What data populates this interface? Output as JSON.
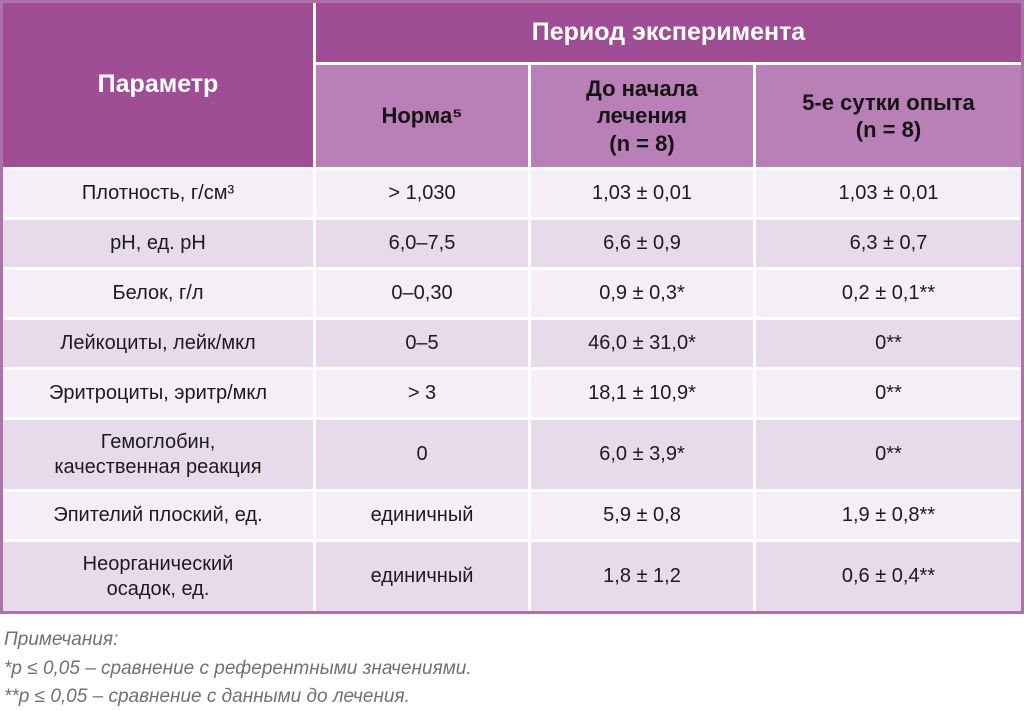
{
  "header": {
    "param_label": "Параметр",
    "period_label": "Период эксперимента",
    "col_norm": "Норма⁵",
    "col_before": "До начала лечения\n(n = 8)",
    "col_day5": "5-е сутки опыта\n(n = 8)"
  },
  "rows": [
    {
      "param": "Плотность, г/см³",
      "norm": "> 1,030",
      "before": "1,03 ± 0,01",
      "day5": "1,03 ± 0,01"
    },
    {
      "param": "pH, ед. pH",
      "norm": "6,0–7,5",
      "before": "6,6 ± 0,9",
      "day5": "6,3 ± 0,7"
    },
    {
      "param": "Белок, г/л",
      "norm": "0–0,30",
      "before": "0,9 ± 0,3*",
      "day5": "0,2 ± 0,1**"
    },
    {
      "param": "Лейкоциты, лейк/мкл",
      "norm": "0–5",
      "before": "46,0 ± 31,0*",
      "day5": "0**"
    },
    {
      "param": "Эритроциты, эритр/мкл",
      "norm": "> 3",
      "before": "18,1 ± 10,9*",
      "day5": "0**"
    },
    {
      "param": "Гемоглобин,\nкачественная реакция",
      "norm": "0",
      "before": "6,0 ± 3,9*",
      "day5": "0**"
    },
    {
      "param": "Эпителий плоский, ед.",
      "norm": "единичный",
      "before": "5,9 ± 0,8",
      "day5": "1,9 ± 0,8**"
    },
    {
      "param": "Неорганический\nосадок, ед.",
      "norm": "единичный",
      "before": "1,8 ± 1,2",
      "day5": "0,6 ± 0,4**"
    }
  ],
  "notes": {
    "title": "Примечания:",
    "items": [
      "*p ≤ 0,05 – сравнение с референтными значениями.",
      "**p ≤ 0,05 – сравнение с данными до лечения."
    ]
  },
  "colors": {
    "header-dark": "#9F4E96",
    "header-light": "#B980B7",
    "row-light": "#F4EEF6",
    "row-dark": "#E6DAEB",
    "table-border": "#AE72AB",
    "text-dark": "#1B1B1B",
    "note-gray": "#6E7177"
  }
}
